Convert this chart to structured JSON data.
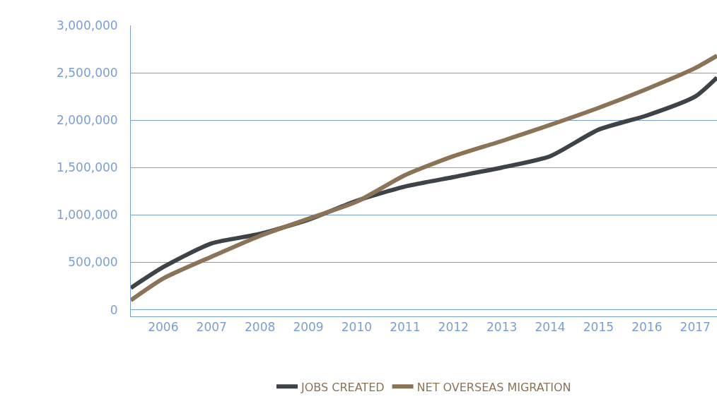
{
  "chart_data": {
    "type": "line",
    "x": [
      2005.33,
      2006,
      2007,
      2008,
      2009,
      2010,
      2011,
      2012,
      2013,
      2014,
      2015,
      2016,
      2017,
      2017.45
    ],
    "series": [
      {
        "name": "JOBS CREATED",
        "color": "#3d4348",
        "values": [
          230000,
          450000,
          700000,
          800000,
          950000,
          1150000,
          1300000,
          1400000,
          1500000,
          1620000,
          1900000,
          2050000,
          2250000,
          2450000
        ]
      },
      {
        "name": "NET OVERSEAS MIGRATION",
        "color": "#8b7358",
        "values": [
          100000,
          330000,
          560000,
          780000,
          960000,
          1140000,
          1420000,
          1620000,
          1780000,
          1950000,
          2130000,
          2330000,
          2550000,
          2680000
        ]
      }
    ],
    "xlim": [
      2005.33,
      2017.45
    ],
    "xticks": [
      2006,
      2007,
      2008,
      2009,
      2010,
      2011,
      2012,
      2013,
      2014,
      2015,
      2016,
      2017
    ],
    "ylim": [
      -70000,
      3000000
    ],
    "yticks": [
      {
        "value": 0,
        "label": "0"
      },
      {
        "value": 500000,
        "label": "500,000"
      },
      {
        "value": 1000000,
        "label": "1,000,000"
      },
      {
        "value": 1500000,
        "label": "1,500,000"
      },
      {
        "value": 2000000,
        "label": "2,000,000"
      },
      {
        "value": 2500000,
        "label": "2,500,000"
      },
      {
        "value": 3000000,
        "label": "3,000,000"
      }
    ],
    "grid": "y",
    "legend": "bottom",
    "marker": "none",
    "line_style": "solid"
  }
}
